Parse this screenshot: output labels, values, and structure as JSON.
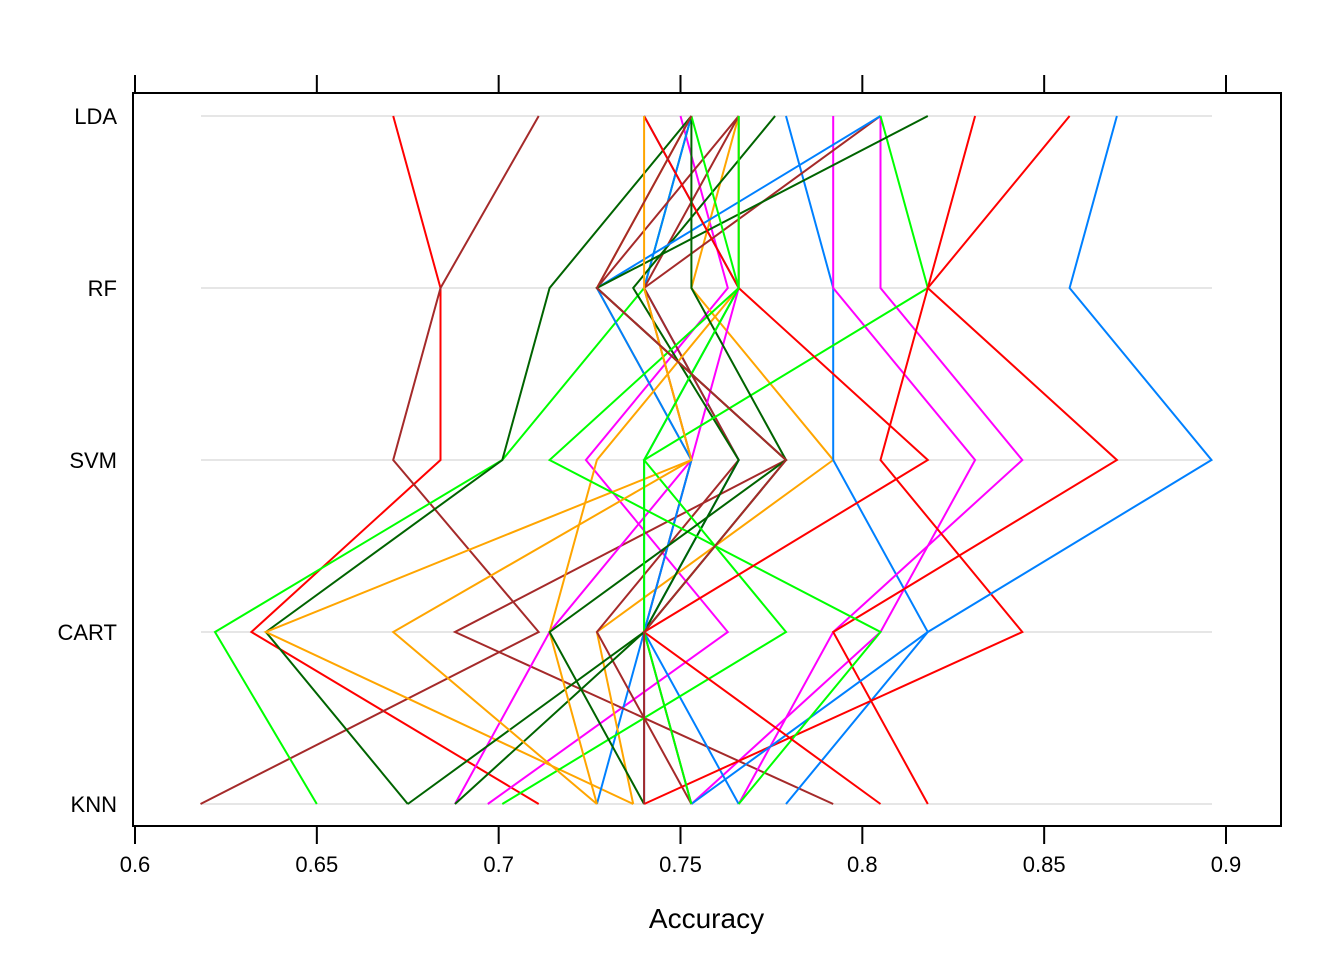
{
  "chart_data": {
    "type": "line",
    "chart_kind": "parallel-coordinates",
    "title": "",
    "xlabel": "Accuracy",
    "ylabel": "",
    "xlim": [
      0.6,
      0.9
    ],
    "x_ticks": [
      "0.6",
      "0.65",
      "0.7",
      "0.75",
      "0.8",
      "0.85",
      "0.9"
    ],
    "categories": [
      "LDA",
      "RF",
      "SVM",
      "CART",
      "KNN"
    ],
    "grid": "horizontal",
    "legend": "none",
    "colors": [
      "#0080ff",
      "#ff00ff",
      "#006400",
      "#ff0000",
      "#ffa500",
      "#00ff00",
      "#a52a2a"
    ],
    "series": [
      {
        "color": "#ff0000",
        "values": [
          0.671,
          0.684,
          0.684,
          0.632,
          0.711
        ]
      },
      {
        "color": "#a52a2a",
        "values": [
          0.711,
          0.684,
          0.671,
          0.711,
          0.618
        ]
      },
      {
        "color": "#0080ff",
        "values": [
          0.74,
          0.766,
          0.74,
          0.74,
          0.74
        ]
      },
      {
        "color": "#ff00ff",
        "values": [
          0.75,
          0.763,
          0.724,
          0.763,
          0.697
        ]
      },
      {
        "color": "#00ff00",
        "values": [
          0.753,
          0.74,
          0.701,
          0.622,
          0.65
        ]
      },
      {
        "color": "#006400",
        "values": [
          0.753,
          0.714,
          0.701,
          0.636,
          0.675
        ]
      },
      {
        "color": "#ffa500",
        "values": [
          0.753,
          0.727,
          0.753,
          0.636,
          0.737
        ]
      },
      {
        "color": "#0080ff",
        "values": [
          0.753,
          0.74,
          0.766,
          0.74,
          0.727
        ]
      },
      {
        "color": "#a52a2a",
        "values": [
          0.766,
          0.727,
          0.779,
          0.688,
          0.792
        ]
      },
      {
        "color": "#ffa500",
        "values": [
          0.766,
          0.753,
          0.792,
          0.727,
          0.737
        ]
      },
      {
        "color": "#a52a2a",
        "values": [
          0.766,
          0.74,
          0.766,
          0.727,
          0.753
        ]
      },
      {
        "color": "#ff00ff",
        "values": [
          0.766,
          0.766,
          0.753,
          0.714,
          0.688
        ]
      },
      {
        "color": "#006400",
        "values": [
          0.776,
          0.737,
          0.766,
          0.74,
          0.688
        ]
      },
      {
        "color": "#0080ff",
        "values": [
          0.779,
          0.792,
          0.792,
          0.818,
          0.779
        ]
      },
      {
        "color": "#ff00ff",
        "values": [
          0.792,
          0.792,
          0.831,
          0.805,
          0.753
        ]
      },
      {
        "color": "#a52a2a",
        "values": [
          0.805,
          0.74,
          0.753,
          0.74,
          0.753
        ]
      },
      {
        "color": "#ff00ff",
        "values": [
          0.805,
          0.805,
          0.844,
          0.792,
          0.766
        ]
      },
      {
        "color": "#0080ff",
        "values": [
          0.805,
          0.727,
          0.753,
          0.74,
          0.766
        ]
      },
      {
        "color": "#00ff00",
        "values": [
          0.805,
          0.818,
          0.74,
          0.779,
          0.701
        ]
      },
      {
        "color": "#006400",
        "values": [
          0.818,
          0.727,
          0.779,
          0.74,
          0.675
        ]
      },
      {
        "color": "#ff0000",
        "values": [
          0.831,
          0.818,
          0.805,
          0.844,
          0.74
        ]
      },
      {
        "color": "#ff0000",
        "values": [
          0.857,
          0.818,
          0.87,
          0.792,
          0.818
        ]
      },
      {
        "color": "#0080ff",
        "values": [
          0.87,
          0.857,
          0.896,
          0.818,
          0.753
        ]
      },
      {
        "color": "#ffa500",
        "values": [
          0.766,
          0.766,
          0.727,
          0.714,
          0.727
        ]
      },
      {
        "color": "#00ff00",
        "values": [
          0.766,
          0.766,
          0.714,
          0.805,
          0.766
        ]
      },
      {
        "color": "#ff0000",
        "values": [
          0.74,
          0.766,
          0.818,
          0.74,
          0.805
        ]
      },
      {
        "color": "#006400",
        "values": [
          0.753,
          0.753,
          0.779,
          0.714,
          0.74
        ]
      },
      {
        "color": "#ffa500",
        "values": [
          0.74,
          0.74,
          0.753,
          0.671,
          0.727
        ]
      },
      {
        "color": "#00ff00",
        "values": [
          0.753,
          0.766,
          0.74,
          0.74,
          0.753
        ]
      },
      {
        "color": "#a52a2a",
        "values": [
          0.753,
          0.727,
          0.779,
          0.74,
          0.74
        ]
      }
    ]
  }
}
